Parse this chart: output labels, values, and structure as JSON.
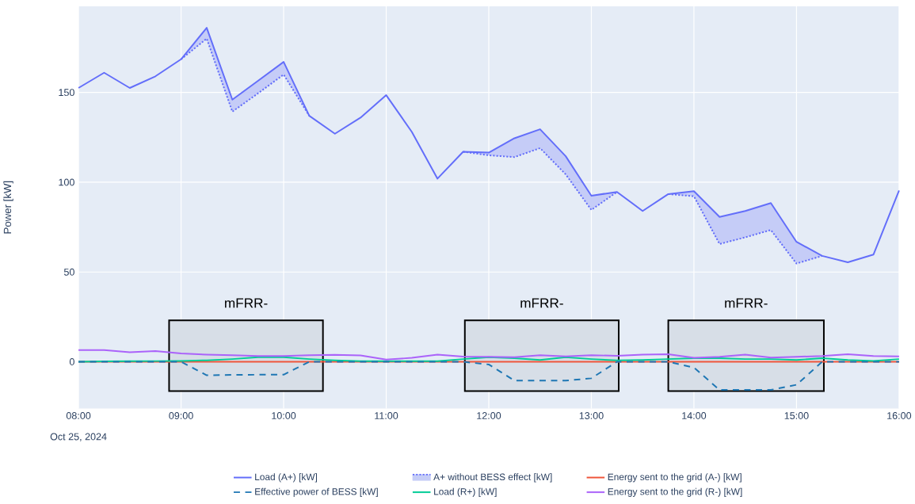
{
  "chart_data": {
    "type": "line",
    "ylabel": "Power [kW]",
    "x": [
      "2024-10-25T08:00",
      "2024-10-25T08:15",
      "2024-10-25T08:30",
      "2024-10-25T08:45",
      "2024-10-25T09:00",
      "2024-10-25T09:15",
      "2024-10-25T09:30",
      "2024-10-25T09:45",
      "2024-10-25T10:00",
      "2024-10-25T10:15",
      "2024-10-25T10:30",
      "2024-10-25T10:45",
      "2024-10-25T11:00",
      "2024-10-25T11:15",
      "2024-10-25T11:30",
      "2024-10-25T11:45",
      "2024-10-25T12:00",
      "2024-10-25T12:15",
      "2024-10-25T12:30",
      "2024-10-25T12:45",
      "2024-10-25T13:00",
      "2024-10-25T13:15",
      "2024-10-25T13:30",
      "2024-10-25T13:45",
      "2024-10-25T14:00",
      "2024-10-25T14:15",
      "2024-10-25T14:30",
      "2024-10-25T14:45",
      "2024-10-25T15:00",
      "2024-10-25T15:15",
      "2024-10-25T15:30",
      "2024-10-25T15:45",
      "2024-10-25T16:00"
    ],
    "series": [
      {
        "name": "Load (A+) [kW]",
        "color": "#636efa",
        "line_style": "solid",
        "values": [
          152.5,
          161,
          152.5,
          159,
          168.5,
          186,
          146,
          156.5,
          167,
          137,
          127,
          136,
          148.5,
          128,
          102,
          117,
          116.5,
          124.5,
          129.5,
          114.5,
          92.5,
          94.6,
          84,
          93.4,
          95,
          80.7,
          84,
          88.4,
          66.8,
          59,
          55.4,
          59.7,
          95.4
        ]
      },
      {
        "name": "A+ without BESS effect [kW]",
        "color": "#636efa",
        "line_style": "dotted",
        "values": [
          null,
          null,
          null,
          null,
          168.5,
          180,
          139.3,
          149.5,
          160,
          137,
          null,
          null,
          null,
          null,
          null,
          117,
          115,
          114,
          119,
          104.4,
          84.6,
          94.6,
          null,
          93.4,
          92.2,
          65.6,
          69.3,
          73.4,
          54.7,
          59,
          null,
          null,
          null
        ],
        "lower": [
          null,
          null,
          null,
          null,
          168.5,
          180,
          139.3,
          149.5,
          160,
          137,
          null,
          null,
          null,
          null,
          null,
          117,
          115,
          114,
          119,
          104.4,
          84.6,
          94.6,
          null,
          93.4,
          92.2,
          65.6,
          69.3,
          73.4,
          54.7,
          59,
          null,
          null,
          null
        ],
        "upper": [
          null,
          null,
          null,
          null,
          168.5,
          186,
          146,
          156.5,
          167,
          137,
          null,
          null,
          null,
          null,
          null,
          117,
          116.5,
          124.5,
          129.5,
          114.5,
          92.5,
          94.6,
          null,
          93.4,
          95,
          80.7,
          84,
          88.4,
          66.8,
          59,
          null,
          null,
          null
        ]
      },
      {
        "name": "Energy sent to the grid (A-) [kW]",
        "color": "#ef553b",
        "line_style": "solid",
        "values": [
          0,
          0,
          0,
          0,
          0,
          0,
          0,
          0,
          0,
          0,
          0,
          0,
          0,
          0,
          0,
          0,
          0,
          0,
          0,
          0,
          0,
          0,
          0,
          0,
          0,
          0,
          0,
          0,
          0,
          0,
          0,
          0,
          0
        ]
      },
      {
        "name": "Effective power of BESS [kW]",
        "color": "#1f77b4",
        "line_style": "dashed",
        "values": [
          0,
          0,
          0,
          0,
          0,
          -7.5,
          -7.3,
          -7.2,
          -7.2,
          0,
          0,
          0,
          0,
          0,
          0,
          0,
          -1.5,
          -10.5,
          -10.5,
          -10.5,
          -9.2,
          0,
          0,
          0,
          -3.2,
          -15.7,
          -15.7,
          -15.7,
          -12.8,
          0,
          0,
          0,
          0
        ]
      },
      {
        "name": "Load (R+) [kW]",
        "color": "#00cc96",
        "line_style": "solid",
        "values": [
          0,
          0.2,
          0.3,
          0.4,
          0.5,
          0.8,
          1.5,
          2.5,
          2.5,
          1.5,
          0.8,
          0.3,
          0.3,
          0.3,
          0.3,
          1.5,
          2.5,
          2,
          1,
          2.5,
          1.5,
          0.8,
          1,
          1.5,
          2,
          2,
          1.5,
          1.5,
          1,
          2,
          1,
          0.5,
          1.5
        ]
      },
      {
        "name": "Energy sent to the grid (R-) [kW]",
        "color": "#ab63fa",
        "line_style": "solid",
        "values": [
          6.5,
          6.5,
          5.3,
          6,
          4.6,
          4,
          3.7,
          3.2,
          3.2,
          3.7,
          3.9,
          3.5,
          1.2,
          2.2,
          4,
          2.9,
          2.8,
          2.5,
          3.7,
          3,
          3.7,
          3.3,
          4,
          4.2,
          2.2,
          2.8,
          4,
          2.3,
          2.8,
          3.2,
          4.2,
          3.2,
          3
        ]
      }
    ],
    "xlim": [
      "2024-10-25T08:00",
      "2024-10-25T16:00"
    ],
    "xticks": [
      {
        "value": "2024-10-25T08:00",
        "label": "08:00"
      },
      {
        "value": "2024-10-25T09:00",
        "label": "09:00"
      },
      {
        "value": "2024-10-25T10:00",
        "label": "10:00"
      },
      {
        "value": "2024-10-25T11:00",
        "label": "11:00"
      },
      {
        "value": "2024-10-25T12:00",
        "label": "12:00"
      },
      {
        "value": "2024-10-25T13:00",
        "label": "13:00"
      },
      {
        "value": "2024-10-25T14:00",
        "label": "14:00"
      },
      {
        "value": "2024-10-25T15:00",
        "label": "15:00"
      },
      {
        "value": "2024-10-25T16:00",
        "label": "16:00"
      }
    ],
    "ylim": [
      -26,
      198
    ],
    "yticks": [
      0,
      50,
      100,
      150
    ],
    "bands": [
      {
        "axis": "x",
        "from": "2024-10-25T08:53",
        "to": "2024-10-25T10:23",
        "label": "mFRR-",
        "color": "#000000"
      },
      {
        "axis": "x",
        "from": "2024-10-25T11:46",
        "to": "2024-10-25T13:16",
        "label": "mFRR-",
        "color": "#000000"
      },
      {
        "axis": "x",
        "from": "2024-10-25T13:45",
        "to": "2024-10-25T15:16",
        "label": "mFRR-",
        "color": "#000000"
      }
    ],
    "annotations": [
      "Oct 25, 2024"
    ],
    "grid": true,
    "legend": "bottom"
  }
}
